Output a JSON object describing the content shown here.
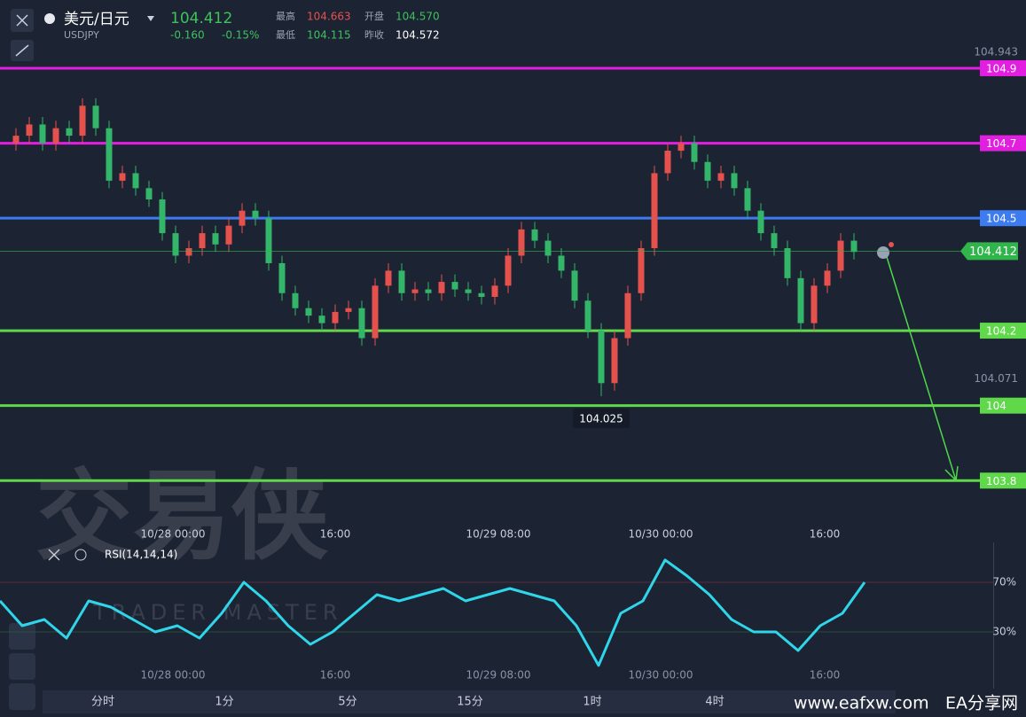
{
  "header": {
    "symbol_name": "美元/日元",
    "symbol_code": "USDJPY",
    "price": "104.412",
    "change": "-0.160",
    "change_pct": "-0.15%",
    "high_label": "最高",
    "high": "104.663",
    "low_label": "最低",
    "low": "104.115",
    "open_label": "开盘",
    "open": "104.570",
    "prev_label": "昨收",
    "prev": "104.572"
  },
  "chart_data": [
    {
      "type": "candlestick",
      "open": [
        104.7,
        104.72,
        104.75,
        104.7,
        104.74,
        104.72,
        104.8,
        104.74,
        104.6,
        104.62,
        104.58,
        104.55,
        104.46,
        104.4,
        104.42,
        104.46,
        104.43,
        104.48,
        104.52,
        104.5,
        104.38,
        104.3,
        104.26,
        104.24,
        104.22,
        104.25,
        104.26,
        104.18,
        104.32,
        104.36,
        104.3,
        104.31,
        104.3,
        104.33,
        104.31,
        104.3,
        104.29,
        104.32,
        104.4,
        104.47,
        104.44,
        104.4,
        104.36,
        104.28,
        104.2,
        104.06,
        104.18,
        104.3,
        104.42,
        104.62,
        104.68,
        104.7,
        104.65,
        104.6,
        104.62,
        104.58,
        104.52,
        104.46,
        104.42,
        104.34,
        104.22,
        104.32,
        104.36,
        104.44
      ],
      "high": [
        104.74,
        104.77,
        104.77,
        104.76,
        104.76,
        104.82,
        104.82,
        104.76,
        104.64,
        104.64,
        104.6,
        104.57,
        104.48,
        104.44,
        104.48,
        104.48,
        104.5,
        104.54,
        104.54,
        104.52,
        104.4,
        104.32,
        104.28,
        104.26,
        104.27,
        104.28,
        104.28,
        104.34,
        104.38,
        104.38,
        104.33,
        104.33,
        104.35,
        104.35,
        104.33,
        104.32,
        104.34,
        104.42,
        104.49,
        104.49,
        104.46,
        104.42,
        104.38,
        104.3,
        104.22,
        104.2,
        104.32,
        104.44,
        104.64,
        104.7,
        104.72,
        104.72,
        104.67,
        104.64,
        104.64,
        104.6,
        104.54,
        104.48,
        104.44,
        104.36,
        104.34,
        104.38,
        104.46,
        104.46
      ],
      "low": [
        104.68,
        104.7,
        104.68,
        104.68,
        104.7,
        104.7,
        104.72,
        104.58,
        104.58,
        104.56,
        104.53,
        104.44,
        104.38,
        104.38,
        104.4,
        104.41,
        104.41,
        104.46,
        104.48,
        104.36,
        104.28,
        104.24,
        104.22,
        104.2,
        104.2,
        104.23,
        104.16,
        104.16,
        104.3,
        104.28,
        104.28,
        104.28,
        104.28,
        104.29,
        104.28,
        104.27,
        104.27,
        104.3,
        104.38,
        104.42,
        104.38,
        104.34,
        104.26,
        104.18,
        104.025,
        104.04,
        104.16,
        104.28,
        104.4,
        104.6,
        104.66,
        104.63,
        104.58,
        104.58,
        104.56,
        104.5,
        104.44,
        104.4,
        104.32,
        104.2,
        104.2,
        104.3,
        104.34,
        104.39
      ],
      "close": [
        104.72,
        104.75,
        104.7,
        104.74,
        104.72,
        104.8,
        104.74,
        104.6,
        104.62,
        104.58,
        104.55,
        104.46,
        104.4,
        104.42,
        104.46,
        104.43,
        104.48,
        104.52,
        104.5,
        104.38,
        104.3,
        104.26,
        104.24,
        104.22,
        104.25,
        104.26,
        104.18,
        104.32,
        104.36,
        104.3,
        104.31,
        104.3,
        104.33,
        104.31,
        104.3,
        104.29,
        104.32,
        104.4,
        104.47,
        104.44,
        104.4,
        104.36,
        104.28,
        104.2,
        104.06,
        104.18,
        104.3,
        104.42,
        104.62,
        104.68,
        104.7,
        104.65,
        104.6,
        104.62,
        104.58,
        104.52,
        104.46,
        104.42,
        104.34,
        104.22,
        104.32,
        104.36,
        104.44,
        104.41
      ],
      "up_color": "#e5524e",
      "down_color": "#33b56a",
      "ylim": [
        103.66,
        104.96
      ],
      "yticks": [
        104.943,
        104.071
      ],
      "levels": [
        {
          "value": 104.9,
          "color": "#e21ee0"
        },
        {
          "value": 104.7,
          "color": "#e21ee0"
        },
        {
          "value": 104.5,
          "color": "#3d7bf0"
        },
        {
          "value": 104.2,
          "color": "#5fd84a"
        },
        {
          "value": 104,
          "color": "#5fd84a"
        },
        {
          "value": 103.8,
          "color": "#5fd84a"
        }
      ],
      "last_price": 104.412,
      "last_color": "#2fb54a",
      "low_annotation": 104.025,
      "x_labels": [
        "10/28 00:00",
        "16:00",
        "10/29 08:00",
        "10/30 00:00",
        "16:00"
      ]
    },
    {
      "type": "line",
      "name": "RSI(14,14,14)",
      "color": "#2fd6ea",
      "values": [
        55,
        35,
        40,
        25,
        55,
        50,
        40,
        30,
        35,
        25,
        45,
        70,
        55,
        35,
        20,
        30,
        45,
        60,
        55,
        60,
        65,
        55,
        60,
        65,
        60,
        55,
        35,
        3,
        45,
        55,
        88,
        75,
        60,
        40,
        30,
        30,
        15,
        35,
        45,
        70
      ],
      "ylim": [
        0,
        100
      ],
      "yticks": [
        {
          "value": 30,
          "label": "30%"
        },
        {
          "value": 70,
          "label": "70%"
        }
      ]
    }
  ],
  "tabs": [
    "分时",
    "1分",
    "5分",
    "15分",
    "1时",
    "4时"
  ],
  "watermark": {
    "cn": "交易侠",
    "en": "TRADER MASTER",
    "site": "www.eafxw.com",
    "site_name": "EA分享网"
  }
}
